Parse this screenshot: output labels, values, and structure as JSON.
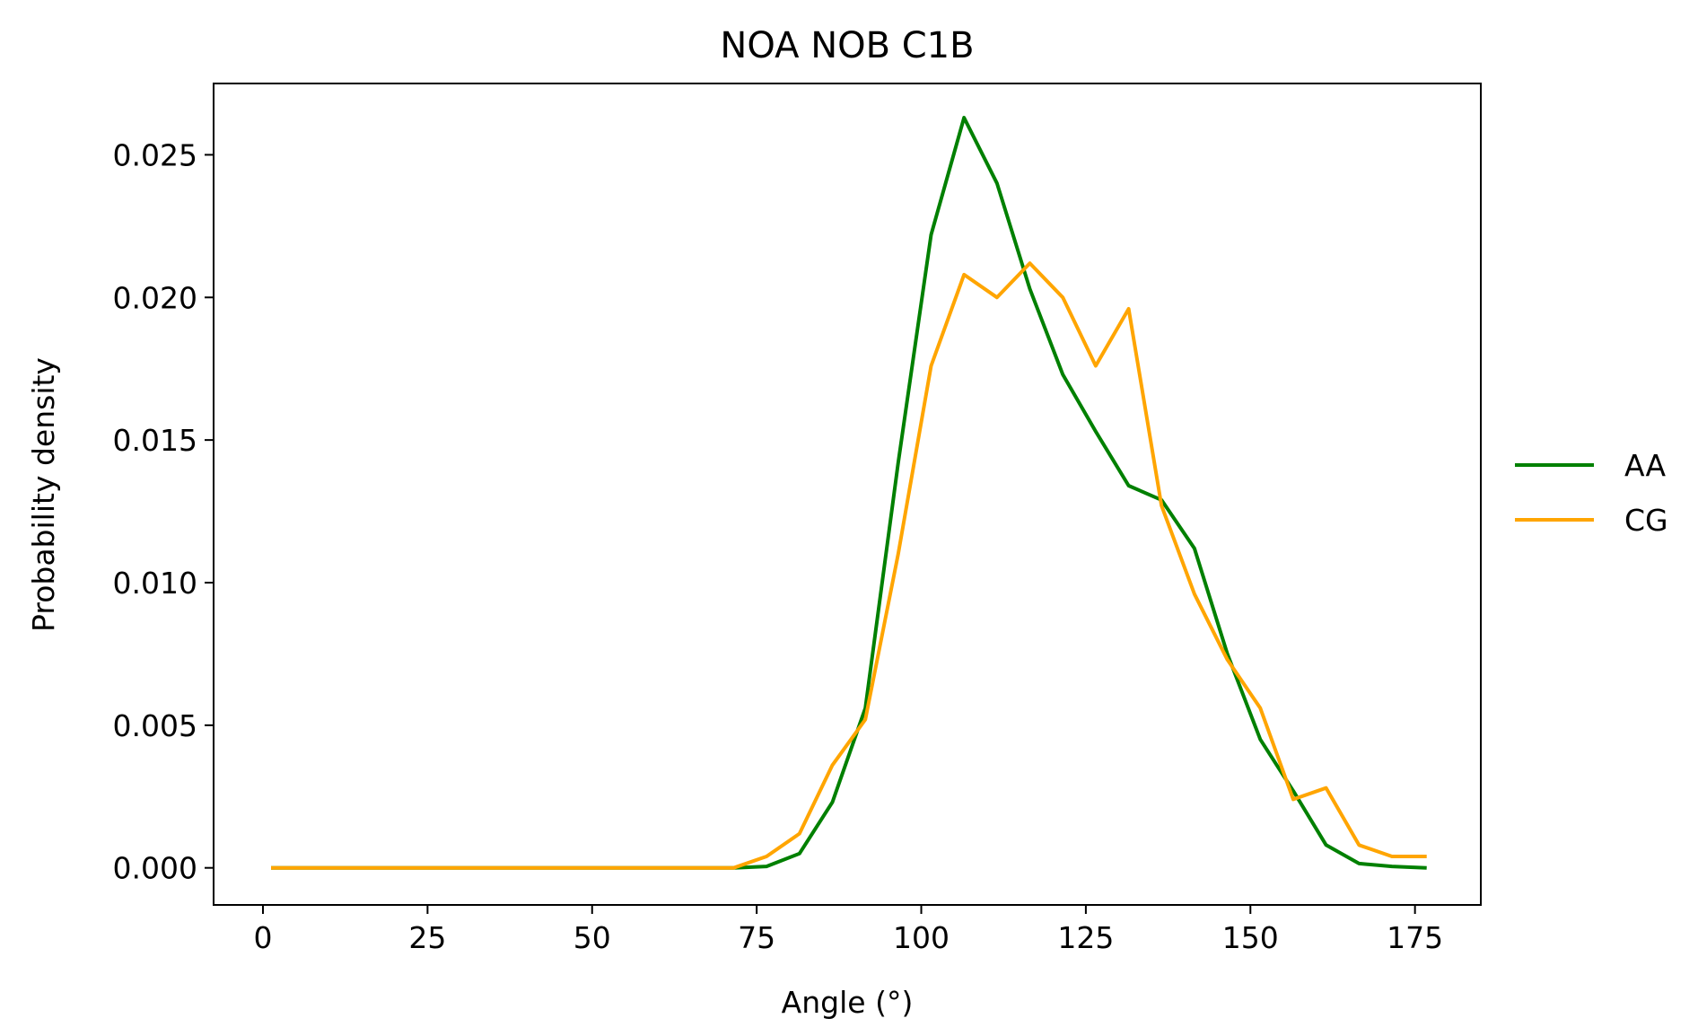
{
  "chart_data": {
    "type": "line",
    "title": "NOA NOB C1B",
    "xlabel": "Angle (°)",
    "ylabel": "Probability density",
    "xlim": [
      -7.5,
      185
    ],
    "ylim": [
      -0.0013,
      0.0275
    ],
    "xticks": [
      0,
      25,
      50,
      75,
      100,
      125,
      150,
      175
    ],
    "xtick_labels": [
      "0",
      "25",
      "50",
      "75",
      "100",
      "125",
      "150",
      "175"
    ],
    "yticks": [
      0.0,
      0.005,
      0.01,
      0.015,
      0.02,
      0.025
    ],
    "ytick_labels": [
      "0.000",
      "0.005",
      "0.010",
      "0.015",
      "0.020",
      "0.025"
    ],
    "legend_position": "right-outside",
    "grid": false,
    "x": [
      1.5,
      6.5,
      11.5,
      16.5,
      21.5,
      26.5,
      31.5,
      36.5,
      41.5,
      46.5,
      51.5,
      56.5,
      61.5,
      66.5,
      71.5,
      76.5,
      81.5,
      86.5,
      91.5,
      96.5,
      101.5,
      106.5,
      111.5,
      116.5,
      121.5,
      126.5,
      131.5,
      136.5,
      141.5,
      146.5,
      151.5,
      156.5,
      161.5,
      166.5,
      171.5,
      176.5
    ],
    "series": [
      {
        "name": "AA",
        "color": "#008000",
        "values": [
          0,
          0,
          0,
          0,
          0,
          0,
          0,
          0,
          0,
          0,
          0,
          0,
          0,
          0,
          0,
          5e-05,
          0.0005,
          0.0023,
          0.0056,
          0.0142,
          0.0222,
          0.0263,
          0.024,
          0.0203,
          0.0173,
          0.0153,
          0.0134,
          0.0129,
          0.0112,
          0.0075,
          0.0045,
          0.0027,
          0.0008,
          0.00015,
          5e-05,
          0.0
        ]
      },
      {
        "name": "CG",
        "color": "#FFA500",
        "values": [
          0,
          0,
          0,
          0,
          0,
          0,
          0,
          0,
          0,
          0,
          0,
          0,
          0,
          0,
          0,
          0.0004,
          0.0012,
          0.0036,
          0.0052,
          0.011,
          0.0176,
          0.0208,
          0.02,
          0.0212,
          0.02,
          0.0176,
          0.0196,
          0.0127,
          0.0096,
          0.0073,
          0.0056,
          0.0024,
          0.0028,
          0.0008,
          0.0004,
          0.0004
        ]
      }
    ]
  }
}
